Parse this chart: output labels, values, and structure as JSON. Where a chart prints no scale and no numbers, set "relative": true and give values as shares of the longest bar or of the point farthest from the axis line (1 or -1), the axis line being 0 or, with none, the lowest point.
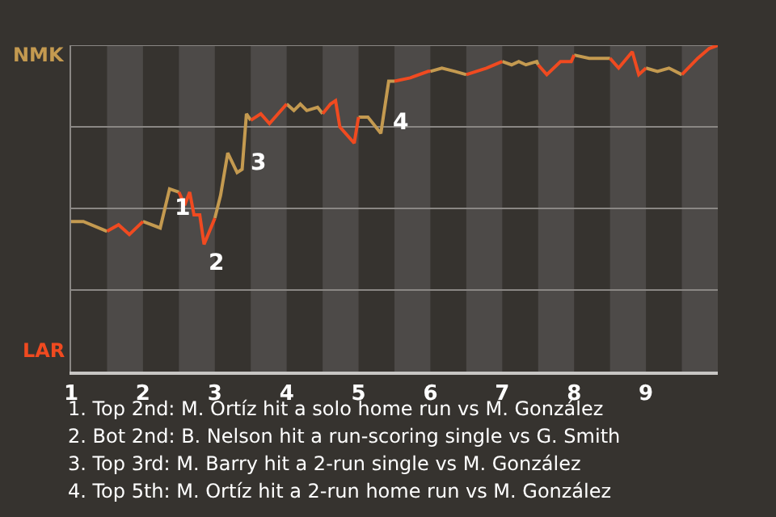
{
  "chart_data": {
    "type": "line",
    "relative": true,
    "x": [
      1,
      1.17,
      1.5,
      1.66,
      1.81,
      2,
      2.24,
      2.37,
      2.5,
      2.58,
      2.65,
      2.71,
      2.79,
      2.85,
      3,
      3.08,
      3.18,
      3.31,
      3.38,
      3.44,
      3.5,
      3.64,
      3.76,
      4,
      4.1,
      4.19,
      4.28,
      4.43,
      4.5,
      4.61,
      4.68,
      4.74,
      4.94,
      5,
      5.13,
      5.31,
      5.42,
      5.5,
      5.72,
      5.97,
      6,
      6.16,
      6.34,
      6.5,
      6.78,
      7,
      7.13,
      7.23,
      7.33,
      7.48,
      7.5,
      7.62,
      7.81,
      7.96,
      8,
      8.21,
      8.5,
      8.62,
      8.81,
      8.9,
      9,
      9.16,
      9.32,
      9.5,
      9.72,
      9.88,
      10
    ],
    "series": [
      {
        "color": "#c49a50",
        "values": [
          0.46,
          0.46,
          0.43,
          null,
          null,
          0.46,
          0.44,
          0.56,
          0.55,
          null,
          null,
          null,
          null,
          null,
          0.47,
          0.54,
          0.67,
          0.61,
          0.62,
          0.79,
          0.77,
          null,
          null,
          0.82,
          0.8,
          0.82,
          0.8,
          0.81,
          0.79,
          null,
          null,
          null,
          null,
          0.78,
          0.78,
          0.73,
          0.89,
          0.89,
          null,
          null,
          0.92,
          0.93,
          0.92,
          0.91,
          null,
          0.95,
          0.94,
          0.95,
          0.94,
          0.95,
          0.94,
          null,
          null,
          null,
          0.97,
          0.96,
          0.96,
          null,
          null,
          null,
          0.93,
          0.92,
          0.93,
          0.91,
          null,
          null,
          null
        ]
      },
      {
        "color": "#f04a20",
        "values": [
          null,
          null,
          0.43,
          0.45,
          0.42,
          0.46,
          null,
          null,
          0.55,
          0.51,
          0.55,
          0.48,
          0.48,
          0.39,
          0.47,
          null,
          null,
          null,
          null,
          null,
          0.77,
          0.79,
          0.76,
          0.82,
          null,
          null,
          null,
          null,
          0.79,
          0.82,
          0.83,
          0.75,
          0.7,
          0.78,
          null,
          null,
          null,
          0.89,
          0.9,
          0.92,
          0.92,
          null,
          null,
          0.91,
          0.93,
          0.95,
          null,
          null,
          null,
          null,
          0.94,
          0.91,
          0.95,
          0.95,
          0.97,
          null,
          0.96,
          0.93,
          0.98,
          0.91,
          0.93,
          null,
          null,
          0.91,
          0.96,
          0.99,
          1
        ]
      }
    ],
    "xlim": [
      1,
      10
    ],
    "xticks": [
      1,
      2,
      3,
      4,
      5,
      6,
      7,
      8,
      9
    ],
    "tick_labels": "x",
    "marker": "none",
    "line_style": "solid",
    "ref_lines": [
      {
        "axis": "y",
        "value": 0.25,
        "color": "#8a8784"
      },
      {
        "axis": "y",
        "value": 0.5,
        "color": "#8a8784"
      },
      {
        "axis": "y",
        "value": 0.75,
        "color": "#8a8784"
      },
      {
        "axis": "y",
        "value": 1,
        "color": "#8a8784"
      }
    ],
    "bands": [
      {
        "axis": "x",
        "from": 1.5,
        "to": 2,
        "color": "#4d4a48"
      },
      {
        "axis": "x",
        "from": 2.5,
        "to": 3,
        "color": "#4d4a48"
      },
      {
        "axis": "x",
        "from": 3.5,
        "to": 4,
        "color": "#4d4a48"
      },
      {
        "axis": "x",
        "from": 4.5,
        "to": 5,
        "color": "#4d4a48"
      },
      {
        "axis": "x",
        "from": 5.5,
        "to": 6,
        "color": "#4d4a48"
      },
      {
        "axis": "x",
        "from": 6.5,
        "to": 7,
        "color": "#4d4a48"
      },
      {
        "axis": "x",
        "from": 7.5,
        "to": 8,
        "color": "#4d4a48"
      },
      {
        "axis": "x",
        "from": 8.5,
        "to": 9,
        "color": "#4d4a48"
      },
      {
        "axis": "x",
        "from": 9.5,
        "to": 10,
        "color": "#4d4a48"
      }
    ],
    "annotations": [
      "NMK",
      "LAR",
      {
        "text": "1",
        "x": 2.37,
        "y": 0.56
      },
      {
        "text": "2",
        "x": 2.85,
        "y": 0.39
      },
      {
        "text": "3",
        "x": 3.44,
        "y": 0.7
      },
      {
        "text": "4",
        "x": 5.42,
        "y": 0.82
      },
      "1. Top 2nd: M. Ortíz hit a solo home run vs M. González",
      "2. Bot 2nd: B. Nelson hit a run-scoring single vs G. Smith",
      "3. Top 3rd: M. Barry hit a 2-run single vs M. González",
      "4. Top 5th: M. Ortíz hit a 2-run home run vs M. González"
    ]
  }
}
